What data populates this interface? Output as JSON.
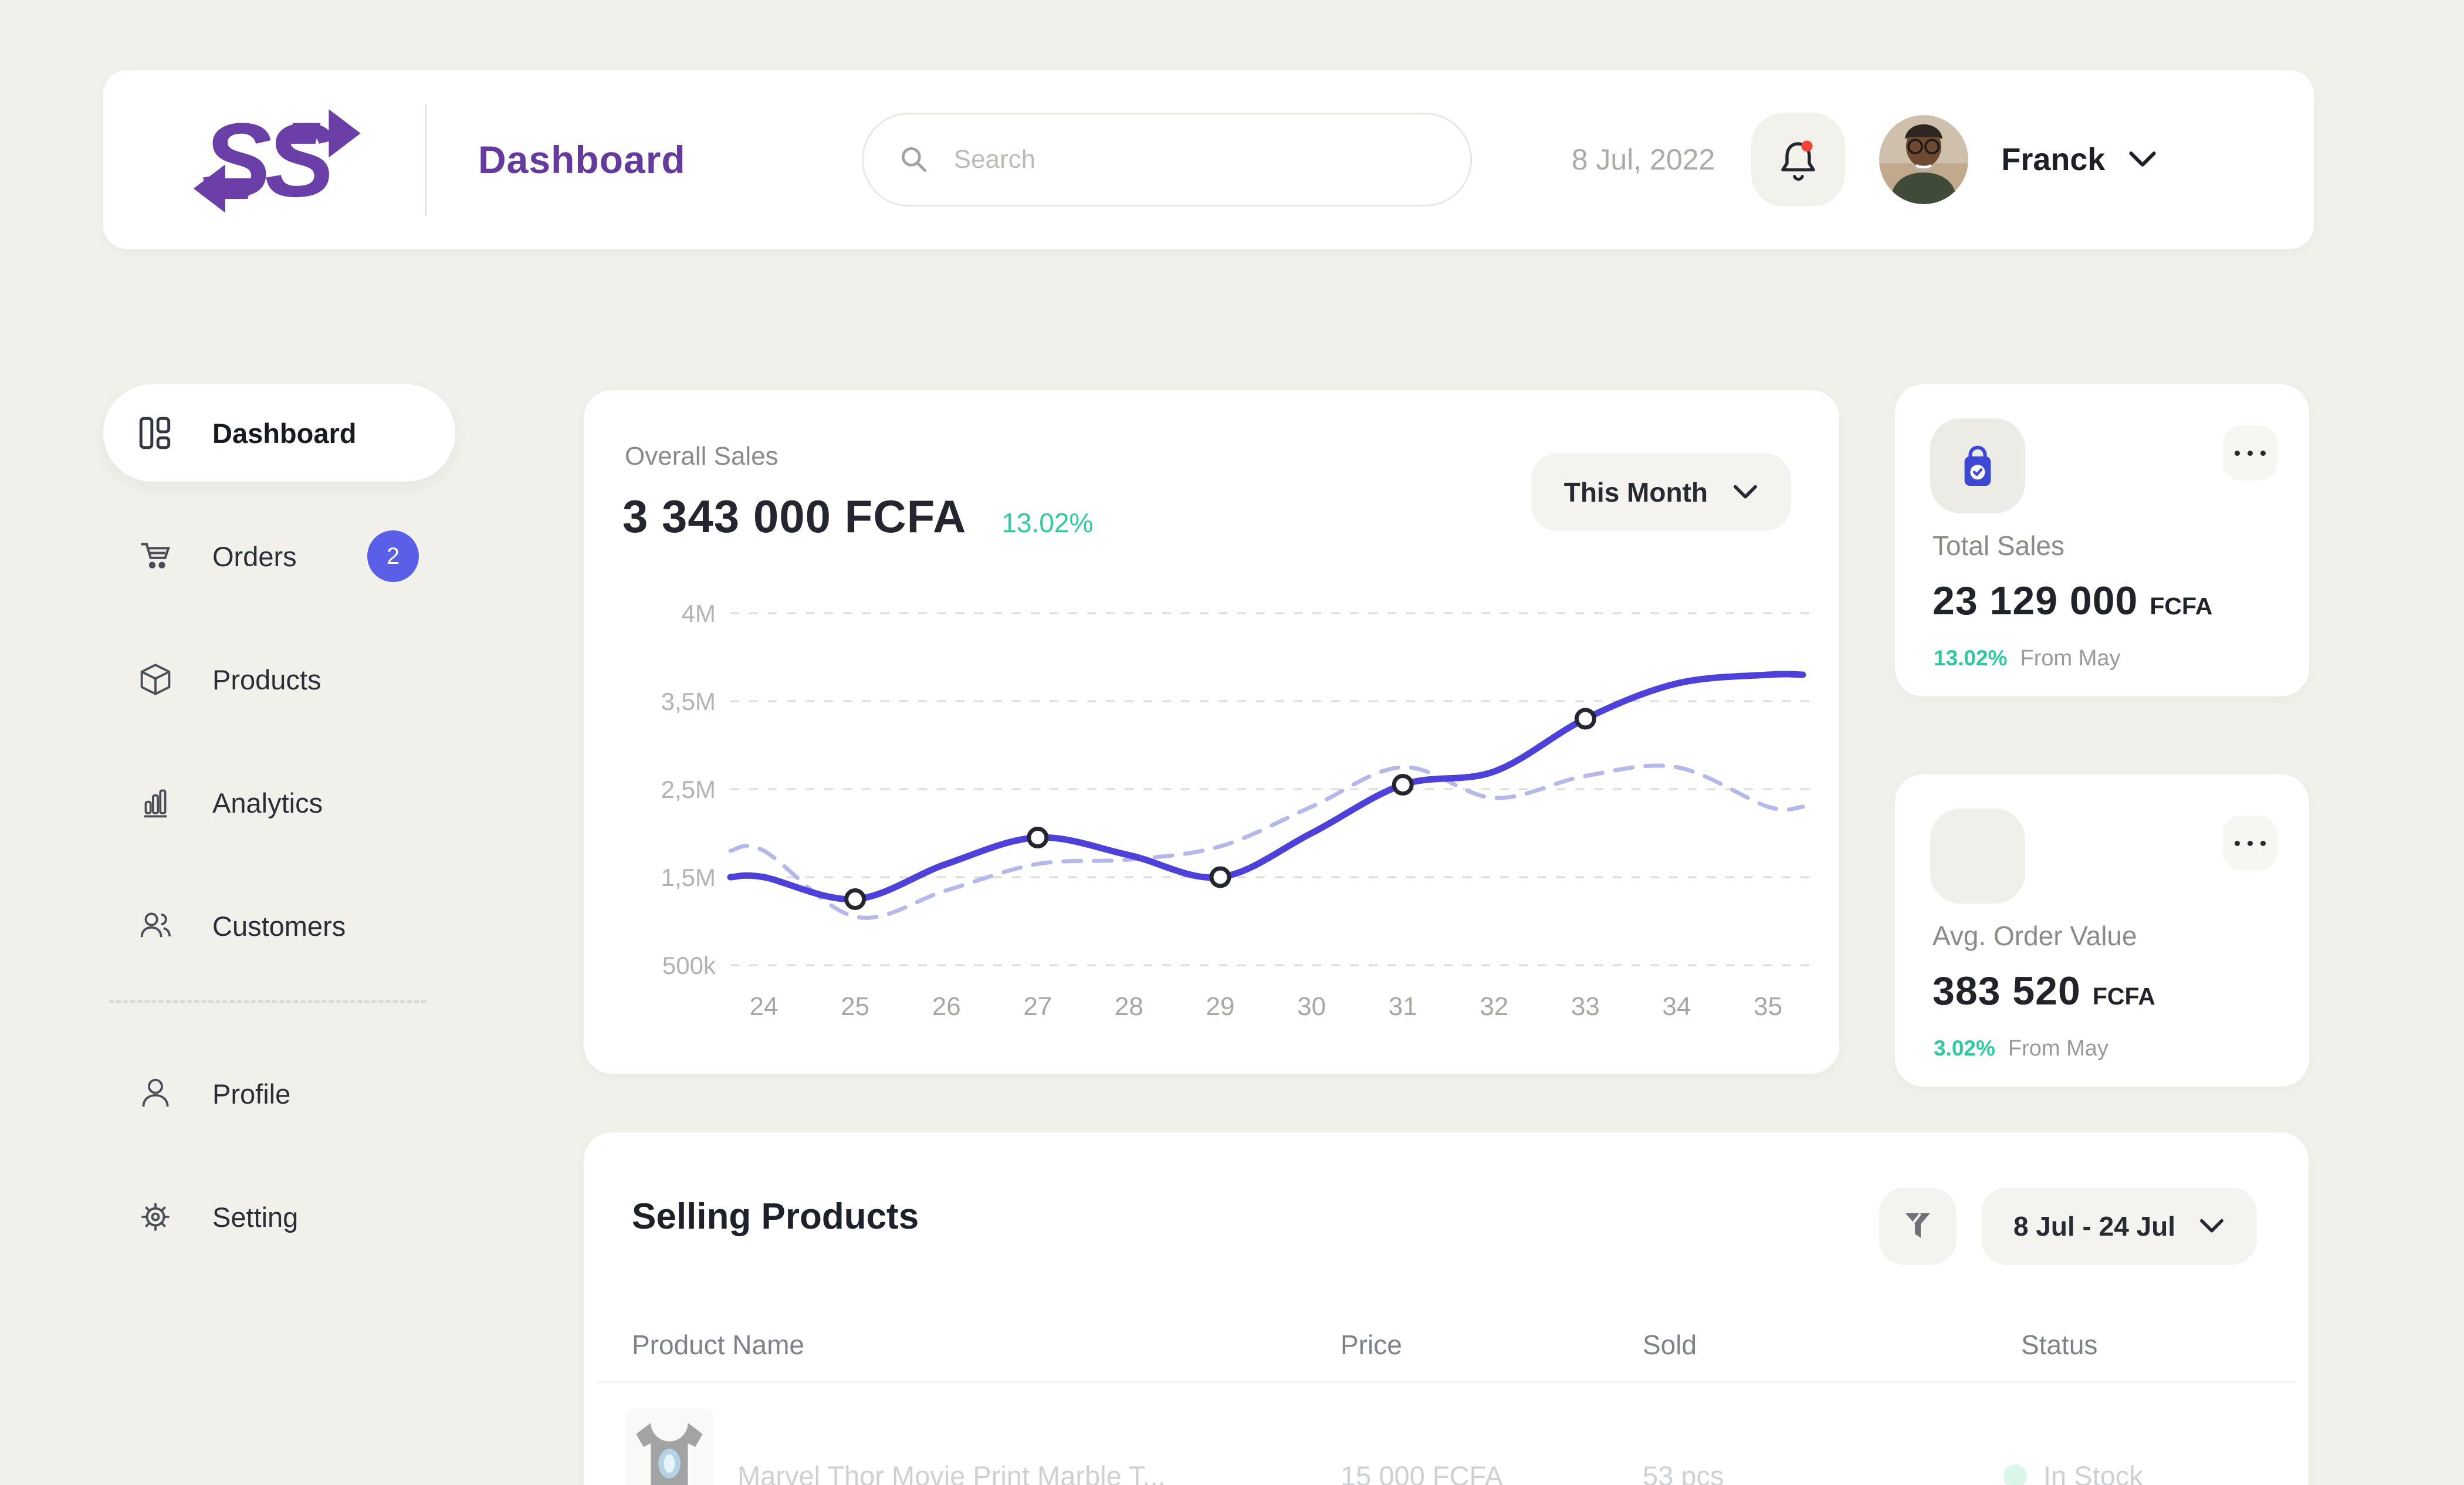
{
  "app": {
    "logo_text": "SS",
    "title": "Dashboard"
  },
  "header": {
    "search_placeholder": "Search",
    "date": "8 Jul, 2022",
    "user_name": "Franck"
  },
  "sidebar": {
    "items": [
      {
        "label": "Dashboard",
        "active": true
      },
      {
        "label": "Orders",
        "badge": "2"
      },
      {
        "label": "Products"
      },
      {
        "label": "Analytics"
      },
      {
        "label": "Customers"
      },
      {
        "label": "Profile"
      },
      {
        "label": "Setting"
      }
    ]
  },
  "overall_sales": {
    "label": "Overall Sales",
    "amount": "3 343 000 FCFA",
    "change": "13.02%",
    "period": "This Month"
  },
  "chart_data": {
    "type": "line",
    "title": "Overall Sales",
    "x": [
      24,
      25,
      26,
      27,
      28,
      29,
      30,
      31,
      32,
      33,
      34,
      35
    ],
    "series": [
      {
        "name": "current-period",
        "style": "solid",
        "color": "#4E41D9",
        "values": [
          1.5,
          1.25,
          1.65,
          1.95,
          1.75,
          1.5,
          2.0,
          2.55,
          2.7,
          3.3,
          3.6,
          3.65
        ]
      },
      {
        "name": "previous-period",
        "style": "dashed",
        "color": "#B4B8EA",
        "values": [
          1.8,
          1.05,
          1.35,
          1.65,
          1.7,
          1.85,
          2.3,
          2.75,
          2.4,
          2.65,
          2.75,
          2.3
        ]
      }
    ],
    "unit": "millions FCFA",
    "markers_x": [
      25,
      27,
      29,
      31,
      33
    ],
    "y_ticks": [
      {
        "label": "4M",
        "value": 4
      },
      {
        "label": "3,5M",
        "value": 3.5
      },
      {
        "label": "2,5M",
        "value": 2.5
      },
      {
        "label": "1,5M",
        "value": 1.5
      },
      {
        "label": "500k",
        "value": 0.5
      }
    ],
    "grid": "dashed-horizontal",
    "legend": "none"
  },
  "stat_cards": [
    {
      "label": "Total Sales",
      "amount": "23 129 000",
      "currency": "FCFA",
      "change": "13.02%",
      "change_note": "From May"
    },
    {
      "label": "Avg. Order Value",
      "amount": "383 520",
      "currency": "FCFA",
      "change": "3.02%",
      "change_note": "From May"
    }
  ],
  "selling_products": {
    "title": "Selling Products",
    "date_range": "8 Jul - 24 Jul",
    "columns": [
      "Product Name",
      "Price",
      "Sold",
      "Status"
    ],
    "rows": [
      {
        "name": "Marvel Thor Movie Print Marble T...",
        "price": "15 000 FCFA",
        "sold": "53 pcs",
        "status": "In Stock"
      }
    ]
  },
  "colors": {
    "accent_purple": "#653A9E",
    "line_solid": "#4E41D9",
    "line_dashed": "#B4B8EA",
    "positive_teal": "#2FC9A2",
    "badge_indigo": "#5A5FE8",
    "notification_red": "#F04438",
    "in_stock_mint": "#A5ECCD",
    "background": "#F1F0EA"
  }
}
